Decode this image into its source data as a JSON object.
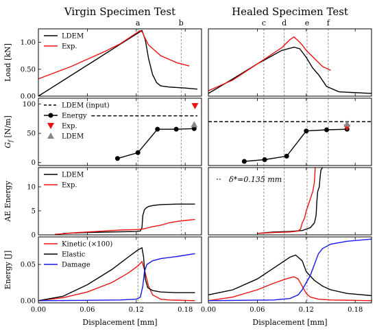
{
  "titles": {
    "left": "Virgin Specimen Test",
    "right": "Healed Specimen Test"
  },
  "xlabel": "Displacement [mm]",
  "ylabels": [
    "Load [kN]",
    "G_f [N/m]",
    "AE Energy",
    "Energy [J]"
  ],
  "letters": {
    "left": [
      "a",
      "b"
    ],
    "right": [
      "c",
      "d",
      "e",
      "f"
    ]
  },
  "colors": {
    "lde": "#000000",
    "exp": "#ee1111",
    "damage": "#1515ee",
    "gray": "#7a7a7a",
    "marker": "#888888"
  },
  "chart_data": [
    {
      "type": "line",
      "panel": "virgin-load",
      "ylabel": "Load [kN]",
      "xlim": [
        0,
        0.2
      ],
      "ylim": [
        0,
        1.25
      ],
      "xticks": [
        0.0,
        0.06,
        0.12,
        0.18
      ],
      "yticks": [
        0.0,
        0.5,
        1.0
      ],
      "vlines": [
        0.122,
        0.175
      ],
      "series": [
        {
          "name": "LDEM",
          "x": [
            0,
            0.05,
            0.1,
            0.127,
            0.131,
            0.135,
            0.14,
            0.145,
            0.15,
            0.16,
            0.18,
            0.195
          ],
          "y": [
            0,
            0.48,
            0.96,
            1.22,
            1.05,
            0.7,
            0.4,
            0.25,
            0.19,
            0.17,
            0.15,
            0.13
          ]
        },
        {
          "name": "Exp.",
          "x": [
            0,
            0.04,
            0.08,
            0.1,
            0.115,
            0.125,
            0.128,
            0.13,
            0.135,
            0.15,
            0.17,
            0.185
          ],
          "y": [
            0.32,
            0.55,
            0.82,
            0.97,
            1.12,
            1.22,
            1.18,
            1.1,
            0.95,
            0.75,
            0.62,
            0.56
          ]
        }
      ]
    },
    {
      "type": "line",
      "panel": "virgin-gf",
      "ylabel": "G_f [N/m]",
      "xlim": [
        0,
        0.2
      ],
      "ylim": [
        -5,
        110
      ],
      "xticks": [
        0.0,
        0.06,
        0.12,
        0.18
      ],
      "yticks": [
        0,
        50,
        100
      ],
      "vlines": [
        0.122,
        0.175
      ],
      "hline": {
        "name": "LDEM (input)",
        "y": 80,
        "x": [
          0.065,
          0.195
        ]
      },
      "series": [
        {
          "name": "Energy",
          "x": [
            0.097,
            0.122,
            0.146,
            0.169,
            0.191
          ],
          "y": [
            7,
            17,
            57,
            57,
            58
          ]
        }
      ],
      "markers": [
        {
          "name": "Exp.",
          "shape": "triangle-down",
          "x": 0.192,
          "y": 97
        },
        {
          "name": "LDEM",
          "shape": "triangle-up",
          "x": 0.191,
          "y": 65
        }
      ]
    },
    {
      "type": "line",
      "panel": "virgin-ae",
      "ylabel": "AE Energy",
      "xlim": [
        0,
        0.2
      ],
      "ylim": [
        0,
        14
      ],
      "xticks": [
        0.0,
        0.06,
        0.12,
        0.18
      ],
      "yticks": [
        0,
        5,
        10
      ],
      "vlines": [
        0.122,
        0.175
      ],
      "series": [
        {
          "name": "LDEM",
          "x": [
            0.03,
            0.06,
            0.09,
            0.12,
            0.125,
            0.127,
            0.128,
            0.13,
            0.132,
            0.135,
            0.14,
            0.15,
            0.17,
            0.192
          ],
          "y": [
            0.3,
            0.5,
            0.6,
            0.7,
            0.8,
            1.5,
            4.0,
            5.2,
            5.6,
            5.9,
            6.1,
            6.3,
            6.4,
            6.4
          ]
        },
        {
          "name": "Exp.",
          "x": [
            0.02,
            0.05,
            0.08,
            0.1,
            0.12,
            0.128,
            0.135,
            0.14,
            0.15,
            0.16,
            0.17,
            0.18,
            0.192
          ],
          "y": [
            0.1,
            0.5,
            0.8,
            1.0,
            1.1,
            1.2,
            1.5,
            1.7,
            2.0,
            2.5,
            2.8,
            3.0,
            3.2
          ]
        }
      ]
    },
    {
      "type": "line",
      "panel": "virgin-energy",
      "ylabel": "Energy [J]",
      "xlim": [
        0,
        0.2
      ],
      "ylim": [
        -0.003,
        0.088
      ],
      "xticks": [
        0.0,
        0.06,
        0.12,
        0.18
      ],
      "yticks": [
        0.0,
        0.05
      ],
      "vlines": [
        0.122
      ],
      "series": [
        {
          "name": "Kinetic (×100)",
          "x": [
            0,
            0.03,
            0.06,
            0.09,
            0.11,
            0.122,
            0.127,
            0.13,
            0.135,
            0.14,
            0.15,
            0.16,
            0.192
          ],
          "y": [
            0,
            0.004,
            0.012,
            0.025,
            0.038,
            0.048,
            0.054,
            0.043,
            0.02,
            0.008,
            0.002,
            0.001,
            0
          ]
        },
        {
          "name": "Elastic",
          "x": [
            0,
            0.03,
            0.06,
            0.09,
            0.11,
            0.122,
            0.127,
            0.129,
            0.131,
            0.134,
            0.14,
            0.15,
            0.17,
            0.192
          ],
          "y": [
            0,
            0.006,
            0.022,
            0.043,
            0.06,
            0.07,
            0.073,
            0.06,
            0.03,
            0.018,
            0.014,
            0.012,
            0.011,
            0.011
          ]
        },
        {
          "name": "Damage",
          "x": [
            0,
            0.06,
            0.1,
            0.12,
            0.125,
            0.128,
            0.13,
            0.133,
            0.14,
            0.15,
            0.17,
            0.192
          ],
          "y": [
            0,
            0.0005,
            0.001,
            0.002,
            0.005,
            0.02,
            0.04,
            0.05,
            0.055,
            0.058,
            0.061,
            0.065
          ]
        }
      ]
    },
    {
      "type": "line",
      "panel": "healed-load",
      "xlim": [
        0,
        0.2
      ],
      "ylim": [
        0,
        1.25
      ],
      "xticks": [
        0.0,
        0.06,
        0.12,
        0.18
      ],
      "yticks": [],
      "vlines": [
        0.068,
        0.093,
        0.121,
        0.147
      ],
      "series": [
        {
          "name": "LDEM",
          "x": [
            0,
            0.03,
            0.06,
            0.09,
            0.105,
            0.112,
            0.12,
            0.128,
            0.135,
            0.145,
            0.16,
            0.2
          ],
          "y": [
            0.05,
            0.32,
            0.6,
            0.85,
            0.91,
            0.88,
            0.72,
            0.52,
            0.4,
            0.18,
            0.08,
            0.05
          ]
        },
        {
          "name": "Exp.",
          "x": [
            0,
            0.03,
            0.06,
            0.09,
            0.1,
            0.105,
            0.11,
            0.115,
            0.12,
            0.13,
            0.14,
            0.15
          ],
          "y": [
            0.1,
            0.3,
            0.6,
            0.9,
            1.05,
            1.1,
            1.03,
            0.95,
            0.85,
            0.7,
            0.55,
            0.48
          ]
        }
      ]
    },
    {
      "type": "line",
      "panel": "healed-gf",
      "xlim": [
        0,
        0.2
      ],
      "ylim": [
        -5,
        110
      ],
      "xticks": [
        0.0,
        0.06,
        0.12,
        0.18
      ],
      "yticks": [],
      "vlines": [
        0.068,
        0.093,
        0.121,
        0.147
      ],
      "hline": {
        "y": 70,
        "x": [
          0.0,
          0.2
        ]
      },
      "series": [
        {
          "name": "Energy",
          "x": [
            0.044,
            0.069,
            0.096,
            0.12,
            0.145,
            0.17
          ],
          "y": [
            2,
            5,
            11,
            54,
            56,
            57
          ]
        }
      ],
      "markers": [
        {
          "name": "Exp.",
          "shape": "triangle-down",
          "x": 0.17,
          "y": 60
        },
        {
          "name": "LDEM",
          "shape": "triangle-up",
          "x": 0.17,
          "y": 66
        }
      ]
    },
    {
      "type": "line",
      "panel": "healed-ae",
      "xlim": [
        0,
        0.2
      ],
      "ylim": [
        0,
        14
      ],
      "xticks": [
        0.0,
        0.06,
        0.12,
        0.18
      ],
      "yticks": [],
      "vlines": [
        0.068,
        0.093,
        0.121,
        0.147
      ],
      "annotation": "δ*=0.135 mm",
      "series": [
        {
          "name": "LDEM",
          "x": [
            0.06,
            0.08,
            0.1,
            0.115,
            0.125,
            0.13,
            0.132,
            0.133,
            0.134,
            0.135,
            0.136,
            0.137,
            0.138,
            0.14
          ],
          "y": [
            0.3,
            0.6,
            0.7,
            0.9,
            1.5,
            2.5,
            4.0,
            7.0,
            9.0,
            9.5,
            10.0,
            12.0,
            13.5,
            14
          ]
        },
        {
          "name": "Exp.",
          "x": [
            0.06,
            0.08,
            0.1,
            0.11,
            0.113,
            0.115,
            0.118,
            0.12,
            0.122,
            0.124,
            0.126,
            0.128,
            0.13,
            0.131
          ],
          "y": [
            0.3,
            0.5,
            0.6,
            0.8,
            1.2,
            2.5,
            3.5,
            5.0,
            6.0,
            7.0,
            8.0,
            9.0,
            11.0,
            14
          ]
        }
      ]
    },
    {
      "type": "line",
      "panel": "healed-energy",
      "xlim": [
        0,
        0.2
      ],
      "ylim": [
        -0.003,
        0.088
      ],
      "xticks": [
        0.0,
        0.06,
        0.12,
        0.18
      ],
      "yticks": [],
      "vlines": [
        0.068,
        0.093,
        0.121,
        0.147
      ],
      "series": [
        {
          "name": "Kinetic (×100)",
          "x": [
            0,
            0.03,
            0.06,
            0.08,
            0.095,
            0.105,
            0.11,
            0.115,
            0.12,
            0.125,
            0.135,
            0.15,
            0.2
          ],
          "y": [
            0,
            0.005,
            0.015,
            0.024,
            0.03,
            0.033,
            0.03,
            0.02,
            0.01,
            0.005,
            0.002,
            0.001,
            0
          ]
        },
        {
          "name": "Elastic",
          "x": [
            0,
            0.03,
            0.06,
            0.08,
            0.1,
            0.107,
            0.115,
            0.12,
            0.13,
            0.14,
            0.15,
            0.17,
            0.2
          ],
          "y": [
            0.008,
            0.015,
            0.03,
            0.045,
            0.06,
            0.063,
            0.055,
            0.04,
            0.028,
            0.02,
            0.015,
            0.01,
            0.007
          ]
        },
        {
          "name": "Damage",
          "x": [
            0,
            0.04,
            0.08,
            0.1,
            0.11,
            0.115,
            0.12,
            0.125,
            0.13,
            0.135,
            0.14,
            0.15,
            0.17,
            0.2
          ],
          "y": [
            0,
            0.0005,
            0.001,
            0.003,
            0.008,
            0.015,
            0.025,
            0.035,
            0.05,
            0.065,
            0.072,
            0.078,
            0.082,
            0.085
          ]
        }
      ]
    }
  ],
  "legends": {
    "virgin-load": [
      "LDEM",
      "Exp."
    ],
    "virgin-gf": [
      "LDEM (input)",
      "Energy",
      "Exp.",
      "LDEM"
    ],
    "virgin-ae": [
      "LDEM",
      "Exp."
    ],
    "virgin-energy": [
      "Kinetic (×100)",
      "Elastic",
      "Damage"
    ]
  }
}
